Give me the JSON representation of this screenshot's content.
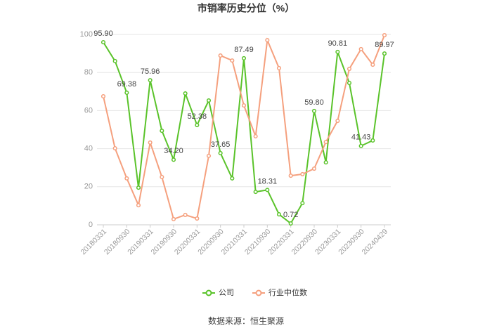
{
  "chart_data": {
    "type": "line",
    "title": "市销率历史分位（%）",
    "source": "数据来源：恒生聚源",
    "categories": [
      "20180331",
      null,
      "20180930",
      null,
      "20190331",
      null,
      "20190930",
      null,
      "20200331",
      null,
      "20200930",
      null,
      "20210331",
      null,
      "20210930",
      null,
      "20220331",
      null,
      "20220930",
      null,
      "20230331",
      null,
      "20230930",
      null,
      "20240429"
    ],
    "series": [
      {
        "name": "公司",
        "color": "#5ac32a",
        "values": [
          95.9,
          86,
          69.38,
          19.5,
          75.96,
          49.4,
          34.2,
          69,
          52.38,
          65.3,
          37.65,
          24.4,
          87.49,
          17.3,
          18.31,
          5.5,
          0.72,
          11.4,
          59.8,
          32.8,
          90.81,
          74.5,
          41.43,
          44.3,
          89.97
        ],
        "value_labels": [
          "95.90",
          null,
          "69.38",
          null,
          "75.96",
          null,
          "34.20",
          null,
          "52.38",
          null,
          "37.65",
          null,
          "87.49",
          null,
          "18.31",
          null,
          "0.72",
          null,
          "59.80",
          null,
          "90.81",
          null,
          "41.43",
          null,
          "89.97"
        ]
      },
      {
        "name": "行业中位数",
        "color": "#f5a07e",
        "values": [
          67.5,
          40.2,
          24.4,
          10.3,
          43.2,
          25.1,
          3,
          5.2,
          3.3,
          36.2,
          88.9,
          86.3,
          62.7,
          46.5,
          97,
          82.3,
          25.8,
          26.6,
          29.5,
          43.5,
          54.6,
          81.9,
          92.3,
          84.1,
          99.6
        ]
      }
    ],
    "ylim": [
      0,
      100
    ],
    "yticks": [
      0,
      20,
      40,
      60,
      80,
      100
    ],
    "grid": true
  }
}
